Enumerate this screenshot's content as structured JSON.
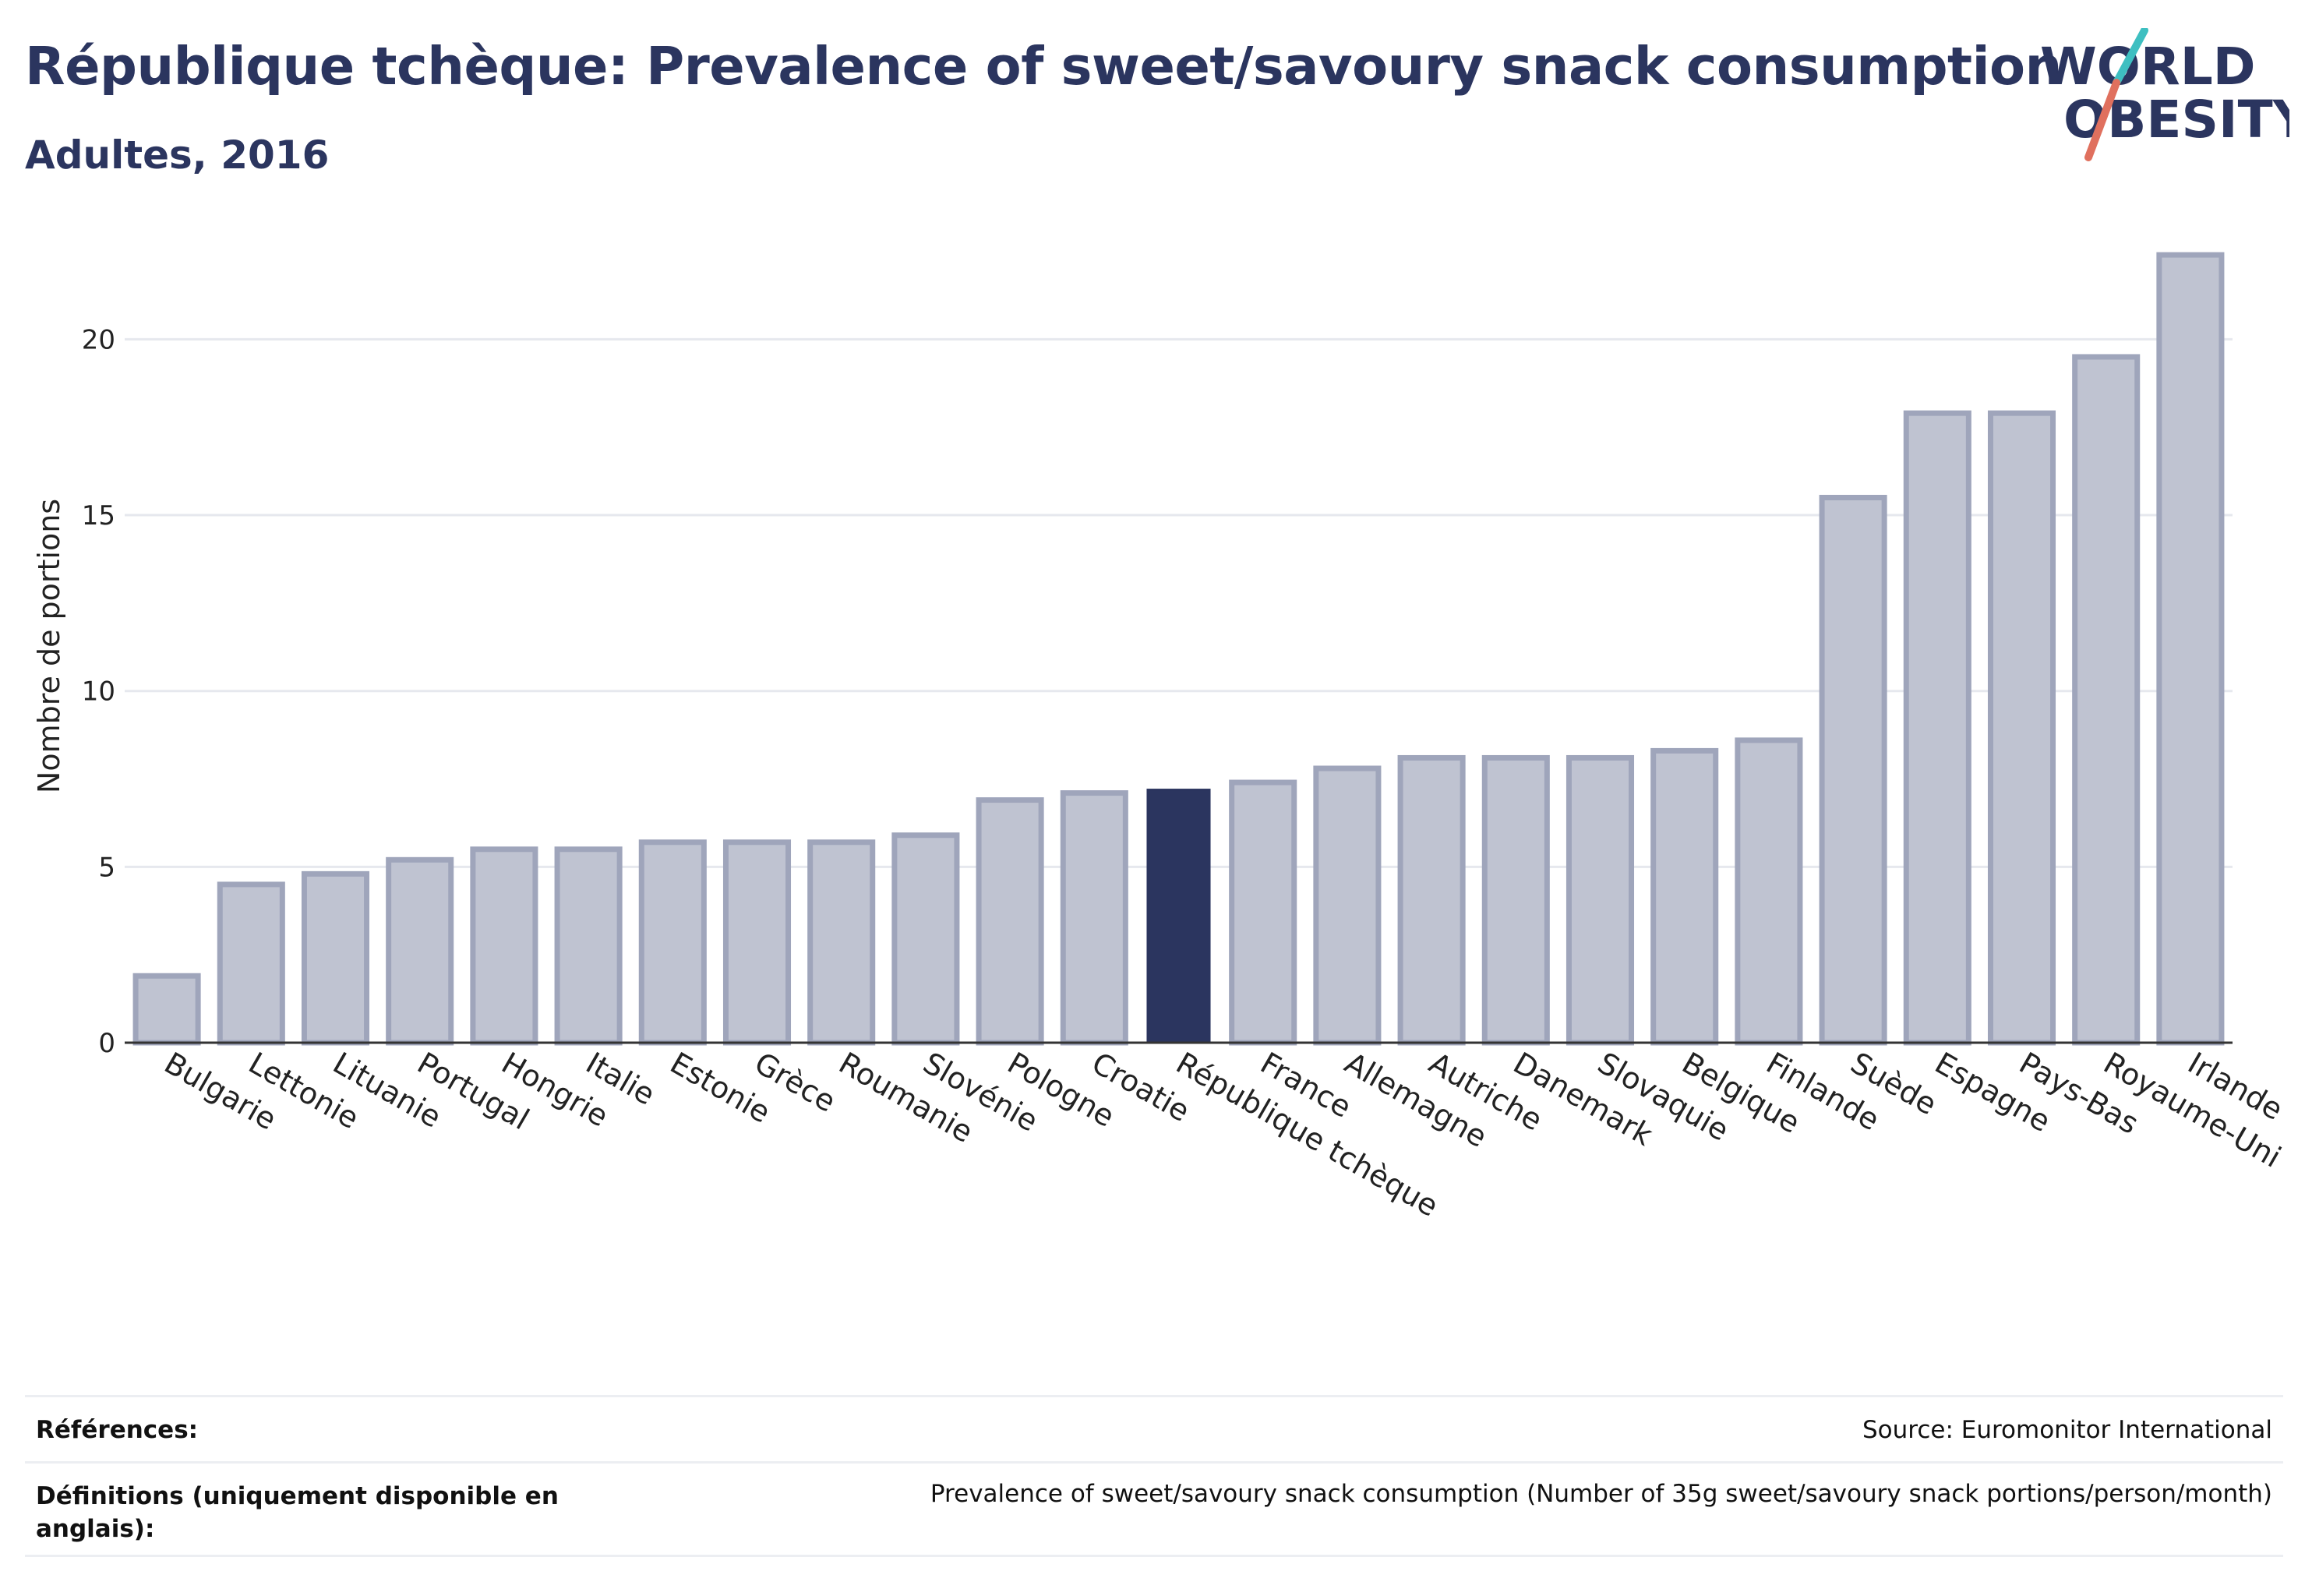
{
  "header": {
    "title": "République tchèque: Prevalence of sweet/savoury snack consumption",
    "subtitle": "Adultes, 2016"
  },
  "logo": {
    "line1": "WORLD",
    "line2": "OBESITY",
    "accent_colors": [
      "#3ebfc1",
      "#e0705e"
    ],
    "text_color": "#2b355f"
  },
  "chart_data": {
    "type": "bar",
    "ylabel": "Nombre de portions",
    "xlabel": "",
    "ylim": [
      0,
      23
    ],
    "yticks": [
      0,
      5,
      10,
      15,
      20
    ],
    "grid": true,
    "highlight": "République tchèque",
    "colors": {
      "highlight": "#2b355f",
      "default": "#bfc3d1",
      "default_border": "#9fa5bb"
    },
    "categories": [
      "Bulgarie",
      "Lettonie",
      "Lituanie",
      "Portugal",
      "Hongrie",
      "Italie",
      "Estonie",
      "Grèce",
      "Roumanie",
      "Slovénie",
      "Pologne",
      "Croatie",
      "République tchèque",
      "France",
      "Allemagne",
      "Autriche",
      "Danemark",
      "Slovaquie",
      "Belgique",
      "Finlande",
      "Suède",
      "Espagne",
      "Pays-Bas",
      "Royaume-Uni",
      "Irlande"
    ],
    "values": [
      1.9,
      4.5,
      4.8,
      5.2,
      5.5,
      5.5,
      5.7,
      5.7,
      5.7,
      5.9,
      6.9,
      7.1,
      7.2,
      7.4,
      7.8,
      8.1,
      8.1,
      8.1,
      8.3,
      8.6,
      15.5,
      17.9,
      17.9,
      19.5,
      22.4
    ]
  },
  "references": {
    "label": "Références:",
    "value": "Source: Euromonitor International"
  },
  "definitions": {
    "label": "Définitions (uniquement disponible en anglais):",
    "value": "Prevalence of sweet/savoury snack consumption (Number of 35g sweet/savoury snack portions/person/month)"
  }
}
